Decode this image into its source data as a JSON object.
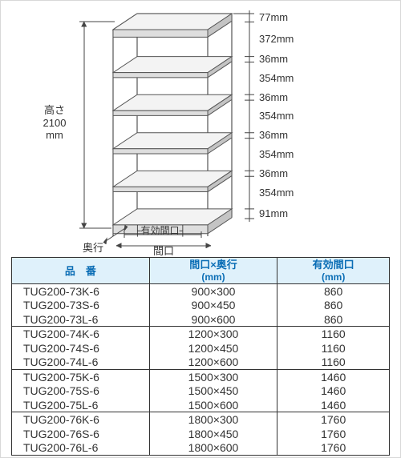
{
  "diagram": {
    "height_label": "高さ",
    "height_value": "2100",
    "height_unit": "mm",
    "depth_label": "奥行",
    "width_label": "間口",
    "effective_width_label": "有効間口",
    "segments": [
      {
        "label": "77mm",
        "v": 12
      },
      {
        "label": "372mm",
        "v": 50
      },
      {
        "label": "36mm",
        "v": 8
      },
      {
        "label": "354mm",
        "v": 47
      },
      {
        "label": "36mm",
        "v": 8
      },
      {
        "label": "354mm",
        "v": 47
      },
      {
        "label": "36mm",
        "v": 8
      },
      {
        "label": "354mm",
        "v": 47
      },
      {
        "label": "36mm",
        "v": 8
      },
      {
        "label": "354mm",
        "v": 47
      },
      {
        "label": "91mm",
        "v": 14
      }
    ],
    "colors": {
      "shelf_outline": "#555555",
      "shelf_fill_light": "#f3f3f3",
      "shelf_fill_mid": "#dedede",
      "shelf_fill_dark": "#c4c4c4",
      "dim_line": "#444444",
      "text": "#333333",
      "header_bg": "#dff1fb",
      "header_text": "#0a6db5",
      "border": "#333333",
      "page_border": "#d8d8d8"
    }
  },
  "table": {
    "headers": {
      "col1": "品　番",
      "col2_line1": "間口×奥行",
      "col2_line2": "(mm)",
      "col3_line1": "有効間口",
      "col3_line2": "(mm)"
    },
    "groups": [
      {
        "rows": [
          {
            "pn": "TUG200-73K-6",
            "size": "900×300",
            "eff": "860"
          },
          {
            "pn": "TUG200-73S-6",
            "size": "900×450",
            "eff": "860"
          },
          {
            "pn": "TUG200-73L-6",
            "size": "900×600",
            "eff": "860"
          }
        ]
      },
      {
        "rows": [
          {
            "pn": "TUG200-74K-6",
            "size": "1200×300",
            "eff": "1160"
          },
          {
            "pn": "TUG200-74S-6",
            "size": "1200×450",
            "eff": "1160"
          },
          {
            "pn": "TUG200-74L-6",
            "size": "1200×600",
            "eff": "1160"
          }
        ]
      },
      {
        "rows": [
          {
            "pn": "TUG200-75K-6",
            "size": "1500×300",
            "eff": "1460"
          },
          {
            "pn": "TUG200-75S-6",
            "size": "1500×450",
            "eff": "1460"
          },
          {
            "pn": "TUG200-75L-6",
            "size": "1500×600",
            "eff": "1460"
          }
        ]
      },
      {
        "rows": [
          {
            "pn": "TUG200-76K-6",
            "size": "1800×300",
            "eff": "1760"
          },
          {
            "pn": "TUG200-76S-6",
            "size": "1800×450",
            "eff": "1760"
          },
          {
            "pn": "TUG200-76L-6",
            "size": "1800×600",
            "eff": "1760"
          }
        ]
      }
    ]
  }
}
